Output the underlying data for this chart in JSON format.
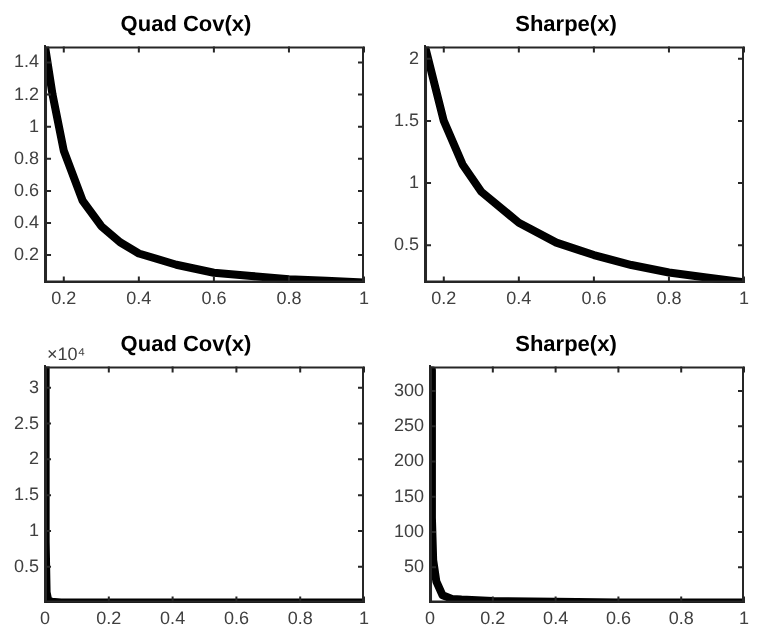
{
  "chart_data": [
    {
      "type": "line",
      "title": "Quad Cov(x)",
      "x": [
        0.15,
        0.17,
        0.2,
        0.25,
        0.3,
        0.35,
        0.4,
        0.5,
        0.6,
        0.7,
        0.8,
        0.9,
        1
      ],
      "series": [
        {
          "color": "#000000",
          "values": [
            1.5,
            1.2,
            0.85,
            0.54,
            0.38,
            0.28,
            0.21,
            0.14,
            0.09,
            0.07,
            0.05,
            0.04,
            0.03
          ]
        }
      ],
      "xlim": [
        0.15,
        1
      ],
      "ylim": [
        0.03,
        1.5
      ],
      "xticks": [
        0.2,
        0.4,
        0.6,
        0.8,
        1
      ],
      "yticks": [
        0.2,
        0.4,
        0.6,
        0.8,
        1,
        1.2,
        1.4
      ],
      "grid": false,
      "legend": false,
      "marker": "none",
      "line_style": "solid"
    },
    {
      "type": "line",
      "title": "Sharpe(x)",
      "x": [
        0.15,
        0.2,
        0.25,
        0.3,
        0.4,
        0.5,
        0.6,
        0.7,
        0.8,
        0.9,
        1
      ],
      "series": [
        {
          "color": "#000000",
          "values": [
            2.1,
            1.5,
            1.15,
            0.93,
            0.68,
            0.52,
            0.42,
            0.34,
            0.28,
            0.24,
            0.2
          ]
        }
      ],
      "xlim": [
        0.15,
        1
      ],
      "ylim": [
        0.2,
        2.1
      ],
      "xticks": [
        0.2,
        0.4,
        0.6,
        0.8,
        1
      ],
      "yticks": [
        0.5,
        1,
        1.5,
        2
      ],
      "grid": false,
      "legend": false,
      "marker": "none",
      "line_style": "solid"
    },
    {
      "type": "line",
      "title": "Quad Cov(x)",
      "annotations": [
        "×10⁴"
      ],
      "x": [
        0.001,
        0.002,
        0.005,
        0.01,
        0.02,
        0.05,
        0.1,
        0.5,
        1
      ],
      "series": [
        {
          "color": "#000000",
          "values": [
            3.3,
            0.85,
            0.14,
            0.03,
            0.01,
            0,
            0,
            0,
            0
          ]
        }
      ],
      "xlim": [
        0,
        1
      ],
      "ylim": [
        0,
        3.3
      ],
      "xticks": [
        0,
        0.2,
        0.4,
        0.6,
        0.8,
        1
      ],
      "yticks": [
        0.5,
        1,
        1.5,
        2,
        2.5,
        3
      ],
      "grid": false,
      "legend": false,
      "marker": "none",
      "line_style": "solid"
    },
    {
      "type": "line",
      "title": "Sharpe(x)",
      "x": [
        0.0025,
        0.006,
        0.01,
        0.02,
        0.04,
        0.07,
        0.1,
        0.2,
        0.4,
        0.6,
        1
      ],
      "series": [
        {
          "color": "#000000",
          "values": [
            330,
            120,
            60,
            30,
            10,
            5,
            4,
            2,
            1,
            0,
            0
          ]
        }
      ],
      "xlim": [
        0,
        1
      ],
      "ylim": [
        0,
        335
      ],
      "xticks": [
        0,
        0.2,
        0.4,
        0.6,
        0.8,
        1
      ],
      "yticks": [
        50,
        100,
        150,
        200,
        250,
        300
      ],
      "grid": false,
      "legend": false,
      "marker": "none",
      "line_style": "solid"
    }
  ]
}
